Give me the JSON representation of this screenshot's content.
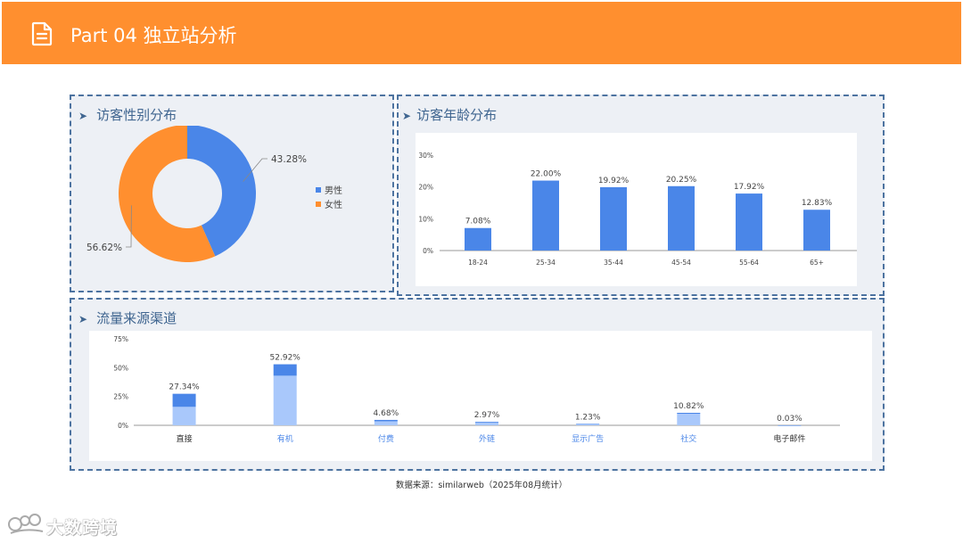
{
  "header": {
    "title": "Part 04 独立站分析",
    "icon": "document-icon",
    "color": "#ff8f2f"
  },
  "gender_panel": {
    "title": "访客性别分布"
  },
  "age_panel": {
    "title": "访客年龄分布"
  },
  "traffic_panel": {
    "title": "流量来源渠道"
  },
  "chart_data": [
    {
      "type": "pie",
      "variant": "donut",
      "categories": [
        "男性",
        "女性"
      ],
      "values": [
        43.28,
        56.62
      ],
      "value_labels": [
        "43.28%",
        "56.62%"
      ],
      "colors": [
        "#4a86e8",
        "#ff8f2f"
      ],
      "legend": [
        "男性",
        "女性"
      ],
      "legend_position": "right"
    },
    {
      "type": "bar",
      "categories": [
        "18-24",
        "25-34",
        "35-44",
        "45-54",
        "55-64",
        "65+"
      ],
      "values": [
        7.08,
        22.0,
        19.92,
        20.25,
        17.92,
        12.83
      ],
      "value_labels": [
        "7.08%",
        "22.00%",
        "19.92%",
        "20.25%",
        "17.92%",
        "12.83%"
      ],
      "ylim": [
        0,
        30
      ],
      "yticks": [
        "0%",
        "10%",
        "20%",
        "30%"
      ],
      "ytick_values": [
        0,
        10,
        20,
        30
      ],
      "color": "#4a86e8",
      "grid": false
    },
    {
      "type": "bar",
      "stacked": true,
      "categories": [
        "直接",
        "有机",
        "付费",
        "外链",
        "显示广告",
        "社交",
        "电子邮件"
      ],
      "values": [
        27.34,
        52.92,
        4.68,
        2.97,
        1.23,
        10.82,
        0.03
      ],
      "value_labels": [
        "27.34%",
        "52.92%",
        "4.68%",
        "2.97%",
        "1.23%",
        "10.82%",
        "0.03%"
      ],
      "series": [
        {
          "values": [
            16,
            43,
            3.5,
            2.2,
            1.0,
            10.0,
            0.02
          ],
          "color": "#a9c8fb"
        },
        {
          "values": [
            11.34,
            9.92,
            1.18,
            0.77,
            0.23,
            0.82,
            0.01
          ],
          "color": "#4a86e8"
        }
      ],
      "ylim": [
        0,
        75
      ],
      "yticks": [
        "0%",
        "25%",
        "50%",
        "75%"
      ],
      "ytick_values": [
        0,
        25,
        50,
        75
      ],
      "category_label_colors": [
        "#333333",
        "#4a86e8",
        "#4a86e8",
        "#4a86e8",
        "#4a86e8",
        "#4a86e8",
        "#333333"
      ],
      "grid": false
    }
  ],
  "footer": {
    "source": "数据来源：similarweb（2025年08月统计）",
    "brand": "大数跨境"
  }
}
